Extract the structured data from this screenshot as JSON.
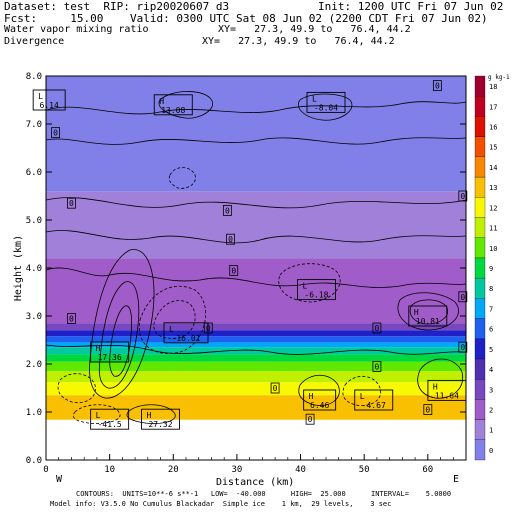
{
  "header": {
    "dataset": "Dataset: test  RIP: rip20020607 d3",
    "init": "Init: 1200 UTC Fri 07 Jun 02",
    "fcst": "Fcst:     15.00",
    "valid": "Valid: 0300 UTC Sat 08 Jun 02 (2200 CDT Fri 07 Jun 02)",
    "field1": "Water vapor mixing ratio",
    "xy1": "XY=   27.3, 49.9 to   76.4, 44.2",
    "field2": "Divergence",
    "xy2": "XY=   27.3, 49.9 to   76.4, 44.2"
  },
  "footer": {
    "line1": "CONTOURS:  UNITS=10**-6 s**-1   LOW=  -40.000      HIGH=  25.000      INTERVAL=    5.0000",
    "line2": "Model info: V3.5.0 No Cumulus Blackadar  Simple ice    1 km,  29 levels,    3 sec"
  },
  "chart_data": {
    "type": "heatmap",
    "xlabel": "Distance (km)",
    "ylabel": "Height (km)",
    "xlim": [
      0,
      66
    ],
    "ylim": [
      0,
      8
    ],
    "x_ticks": [
      "0",
      "10",
      "20",
      "30",
      "40",
      "50",
      "60"
    ],
    "y_ticks": [
      "0.0",
      "1.0",
      "2.0",
      "3.0",
      "4.0",
      "5.0",
      "6.0",
      "7.0",
      "8.0"
    ],
    "x_end_labels": {
      "left": "W",
      "right": "E"
    },
    "colorbar": {
      "unit": "g kg-1",
      "levels": [
        "0",
        "1",
        "2",
        "3",
        "4",
        "5",
        "6",
        "7",
        "8",
        "9",
        "10",
        "11",
        "12",
        "13",
        "14",
        "15",
        "16",
        "17",
        "18"
      ],
      "colors": [
        "#8080e8",
        "#a080d8",
        "#a05cc8",
        "#7848c0",
        "#5030b0",
        "#2020c8",
        "#2060f0",
        "#00a8f8",
        "#00c8a0",
        "#00d840",
        "#60e800",
        "#c0f000",
        "#f8f800",
        "#f8c000",
        "#f88800",
        "#f05000",
        "#e01000",
        "#c00020",
        "#a00030"
      ]
    },
    "moisture_bands": [
      {
        "ybot": 0.84,
        "ytop": 1.35,
        "level": 13
      },
      {
        "ybot": 1.35,
        "ytop": 1.62,
        "level": 12
      },
      {
        "ybot": 1.62,
        "ytop": 1.85,
        "level": 11
      },
      {
        "ybot": 1.85,
        "ytop": 2.05,
        "level": 10
      },
      {
        "ybot": 2.05,
        "ytop": 2.2,
        "level": 9
      },
      {
        "ybot": 2.2,
        "ytop": 2.35,
        "level": 8
      },
      {
        "ybot": 2.35,
        "ytop": 2.45,
        "level": 7
      },
      {
        "ybot": 2.45,
        "ytop": 2.58,
        "level": 6
      },
      {
        "ybot": 2.58,
        "ytop": 2.7,
        "level": 5
      },
      {
        "ybot": 2.7,
        "ytop": 2.85,
        "level": 3
      },
      {
        "ybot": 2.85,
        "ytop": 4.2,
        "level": 2
      },
      {
        "ybot": 4.2,
        "ytop": 5.6,
        "level": 1
      },
      {
        "ybot": 5.6,
        "ytop": 8.0,
        "level": 0
      }
    ],
    "extrema": [
      {
        "kind": "L",
        "value": "6.14",
        "x": 0.5,
        "y": 7.5
      },
      {
        "kind": "H",
        "value": "13.08",
        "x": 20,
        "y": 7.4
      },
      {
        "kind": "L",
        "value": "-8.04",
        "x": 44,
        "y": 7.45
      },
      {
        "kind": "L",
        "value": "-6.18",
        "x": 42.5,
        "y": 3.55
      },
      {
        "kind": "H",
        "value": "10.81",
        "x": 60,
        "y": 3.0
      },
      {
        "kind": "L",
        "value": "-16.01",
        "x": 22,
        "y": 2.65
      },
      {
        "kind": "H",
        "value": "17.36",
        "x": 10,
        "y": 2.25
      },
      {
        "kind": "H",
        "value": "6.46",
        "x": 43,
        "y": 1.25
      },
      {
        "kind": "L",
        "value": "-4.67",
        "x": 51.5,
        "y": 1.25
      },
      {
        "kind": "H",
        "value": "11.64",
        "x": 63,
        "y": 1.45
      },
      {
        "kind": "L",
        "value": "-41.5",
        "x": 10,
        "y": 0.85
      },
      {
        "kind": "H",
        "value": "27.32",
        "x": 18,
        "y": 0.85
      }
    ],
    "zero_labels": [
      {
        "x": 1.5,
        "y": 6.82
      },
      {
        "x": 61.5,
        "y": 7.8
      },
      {
        "x": 4,
        "y": 5.35
      },
      {
        "x": 28.5,
        "y": 5.2
      },
      {
        "x": 65.5,
        "y": 5.5
      },
      {
        "x": 29,
        "y": 4.6
      },
      {
        "x": 29.5,
        "y": 3.95
      },
      {
        "x": 65.5,
        "y": 3.4
      },
      {
        "x": 4,
        "y": 2.95
      },
      {
        "x": 25.5,
        "y": 2.75
      },
      {
        "x": 52,
        "y": 2.75
      },
      {
        "x": 65.5,
        "y": 2.35
      },
      {
        "x": 52,
        "y": 1.95
      },
      {
        "x": 36,
        "y": 1.5
      },
      {
        "x": 60,
        "y": 1.05
      },
      {
        "x": 41.5,
        "y": 0.85
      }
    ]
  }
}
